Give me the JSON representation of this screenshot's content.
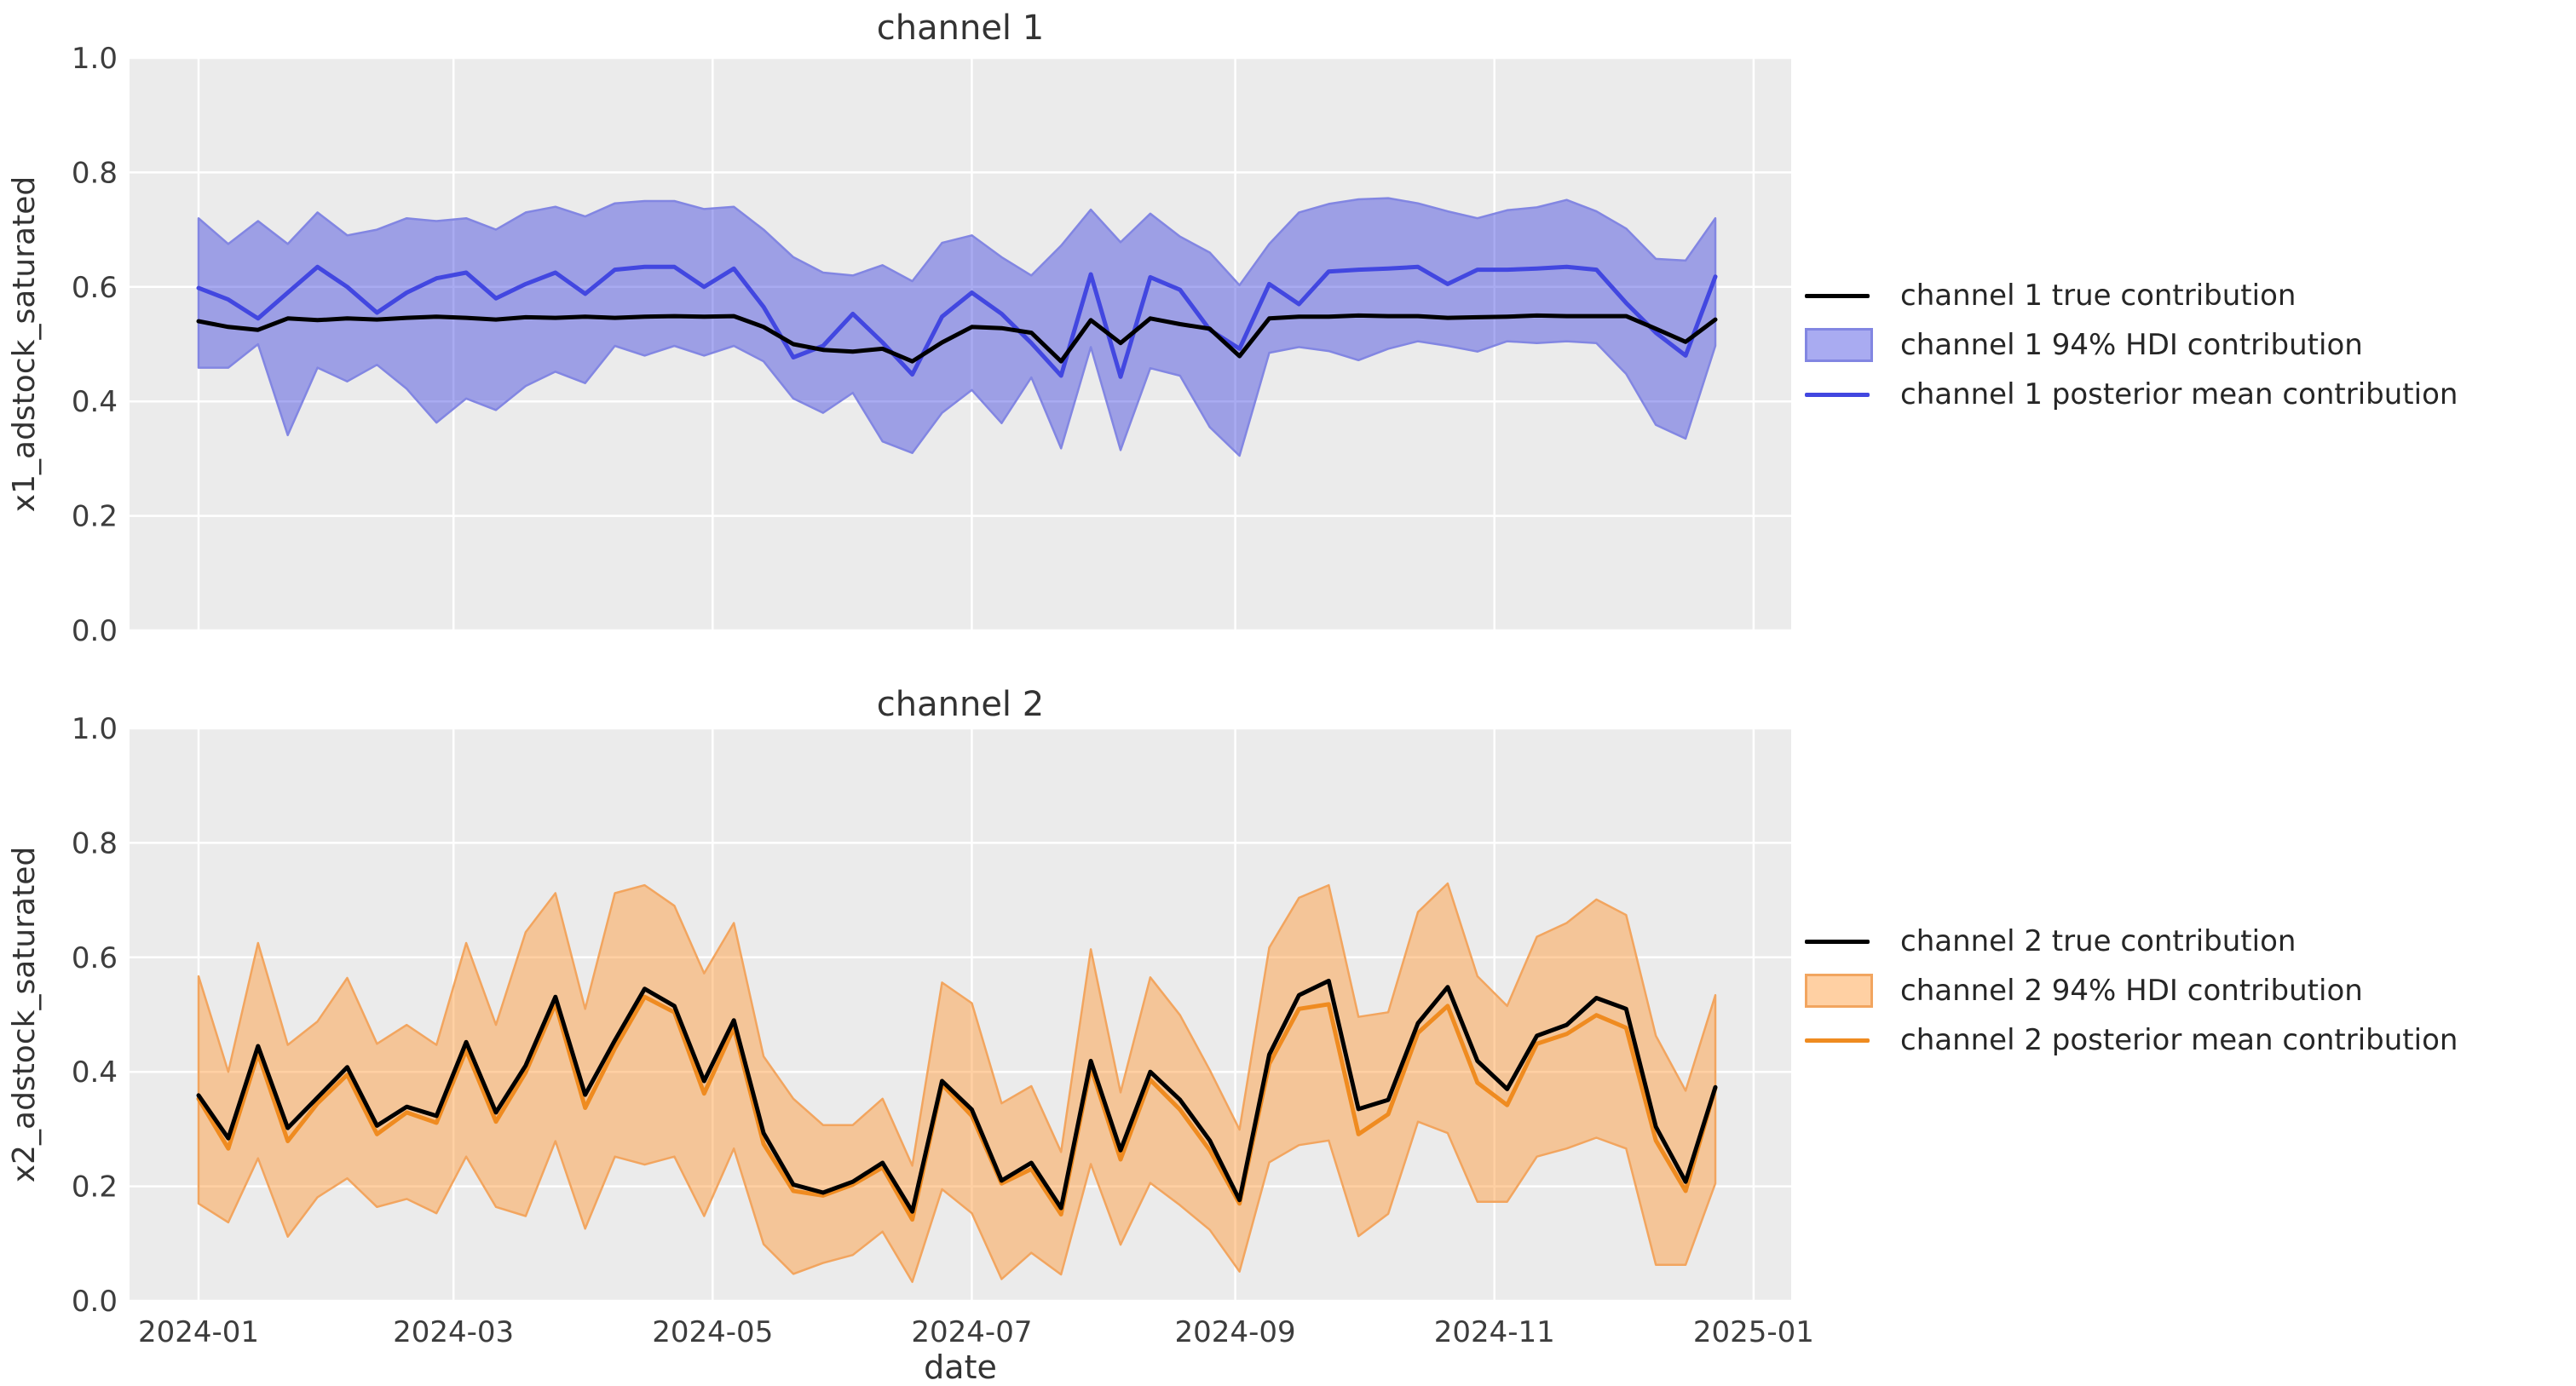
{
  "style": {
    "figure_bg": "#ffffff",
    "plot_bg": "#ebebeb",
    "grid_color": "#ffffff",
    "tick_color": "#3d3d3d",
    "text_color": "#333333"
  },
  "chart_data": [
    {
      "type": "line",
      "title": "channel 1",
      "xlabel": "",
      "ylabel": "x1_adstock_saturated",
      "ylim": [
        0.0,
        1.0
      ],
      "ytick_values": [
        0.0,
        0.2,
        0.4,
        0.6,
        0.8,
        1.0
      ],
      "ytick_labels": [
        "0.0",
        "0.2",
        "0.4",
        "0.6",
        "0.8",
        "1.0"
      ],
      "xtick_labels": [
        "2024-01",
        "2024-03",
        "2024-05",
        "2024-07",
        "2024-09",
        "2024-11",
        "2025-01"
      ],
      "xtick_days": [
        0,
        60,
        121,
        182,
        244,
        305,
        366
      ],
      "x_start": "2024-01-01",
      "x_step_days": 7,
      "n_points": 52,
      "grid": true,
      "legend_position": "right",
      "colors": {
        "true_line": "#000000",
        "posterior_mean_line": "#4247e0",
        "hdi_fill": "rgba(40,45,220,0.40)",
        "hdi_edge": "#8286e2"
      },
      "legend": [
        {
          "label": "channel 1 true contribution",
          "swatch": "line",
          "color_key": "true_line"
        },
        {
          "label": "channel 1 94% HDI contribution",
          "swatch": "band",
          "color_key": "hdi_fill"
        },
        {
          "label": "channel 1 posterior mean contribution",
          "swatch": "line",
          "color_key": "posterior_mean_line"
        }
      ],
      "series": [
        {
          "name": "channel 1 true contribution",
          "values": [
            0.54,
            0.53,
            0.525,
            0.545,
            0.542,
            0.545,
            0.543,
            0.546,
            0.548,
            0.546,
            0.543,
            0.547,
            0.546,
            0.548,
            0.546,
            0.548,
            0.549,
            0.548,
            0.549,
            0.53,
            0.5,
            0.49,
            0.487,
            0.492,
            0.47,
            0.503,
            0.53,
            0.528,
            0.52,
            0.47,
            0.542,
            0.502,
            0.545,
            0.535,
            0.527,
            0.479,
            0.545,
            0.548,
            0.548,
            0.55,
            0.549,
            0.549,
            0.546,
            0.547,
            0.548,
            0.55,
            0.549,
            0.549,
            0.549,
            0.527,
            0.504,
            0.543
          ]
        },
        {
          "name": "channel 1 posterior mean contribution",
          "values": [
            0.598,
            0.578,
            0.545,
            0.59,
            0.635,
            0.6,
            0.555,
            0.59,
            0.615,
            0.625,
            0.58,
            0.605,
            0.625,
            0.588,
            0.63,
            0.635,
            0.635,
            0.6,
            0.632,
            0.565,
            0.477,
            0.497,
            0.553,
            0.503,
            0.447,
            0.548,
            0.59,
            0.553,
            0.502,
            0.445,
            0.622,
            0.443,
            0.617,
            0.595,
            0.525,
            0.492,
            0.605,
            0.57,
            0.627,
            0.63,
            0.632,
            0.635,
            0.605,
            0.63,
            0.63,
            0.632,
            0.635,
            0.63,
            0.572,
            0.52,
            0.48,
            0.618
          ]
        },
        {
          "name": "channel 1 94% HDI upper",
          "values": [
            0.72,
            0.675,
            0.715,
            0.675,
            0.73,
            0.69,
            0.7,
            0.72,
            0.715,
            0.72,
            0.7,
            0.73,
            0.74,
            0.723,
            0.746,
            0.75,
            0.75,
            0.736,
            0.74,
            0.7,
            0.652,
            0.625,
            0.62,
            0.638,
            0.61,
            0.677,
            0.69,
            0.652,
            0.62,
            0.672,
            0.735,
            0.678,
            0.728,
            0.688,
            0.66,
            0.603,
            0.675,
            0.73,
            0.745,
            0.753,
            0.755,
            0.746,
            0.732,
            0.72,
            0.734,
            0.739,
            0.752,
            0.732,
            0.702,
            0.649,
            0.646,
            0.72
          ]
        },
        {
          "name": "channel 1 94% HDI lower",
          "values": [
            0.459,
            0.459,
            0.5,
            0.341,
            0.459,
            0.435,
            0.464,
            0.422,
            0.363,
            0.405,
            0.385,
            0.427,
            0.452,
            0.432,
            0.497,
            0.48,
            0.497,
            0.48,
            0.497,
            0.47,
            0.405,
            0.38,
            0.415,
            0.33,
            0.31,
            0.38,
            0.42,
            0.362,
            0.442,
            0.318,
            0.495,
            0.315,
            0.458,
            0.445,
            0.355,
            0.305,
            0.485,
            0.495,
            0.488,
            0.472,
            0.492,
            0.505,
            0.497,
            0.487,
            0.505,
            0.502,
            0.505,
            0.502,
            0.448,
            0.359,
            0.335,
            0.497
          ]
        }
      ]
    },
    {
      "type": "line",
      "title": "channel 2",
      "xlabel": "date",
      "ylabel": "x2_adstock_saturated",
      "ylim": [
        0.0,
        1.0
      ],
      "ytick_values": [
        0.0,
        0.2,
        0.4,
        0.6,
        0.8,
        1.0
      ],
      "ytick_labels": [
        "0.0",
        "0.2",
        "0.4",
        "0.6",
        "0.8",
        "1.0"
      ],
      "xtick_labels": [
        "2024-01",
        "2024-03",
        "2024-05",
        "2024-07",
        "2024-09",
        "2024-11",
        "2025-01"
      ],
      "xtick_days": [
        0,
        60,
        121,
        182,
        244,
        305,
        366
      ],
      "x_start": "2024-01-01",
      "x_step_days": 7,
      "n_points": 52,
      "grid": true,
      "legend_position": "right",
      "colors": {
        "true_line": "#000000",
        "posterior_mean_line": "#ef8b20",
        "hdi_fill": "rgba(255,150,50,0.45)",
        "hdi_edge": "#f2a55f"
      },
      "legend": [
        {
          "label": "channel 2 true contribution",
          "swatch": "line",
          "color_key": "true_line"
        },
        {
          "label": "channel 2 94% HDI contribution",
          "swatch": "band",
          "color_key": "hdi_fill"
        },
        {
          "label": "channel 2 posterior mean contribution",
          "swatch": "line",
          "color_key": "posterior_mean_line"
        }
      ],
      "series": [
        {
          "name": "channel 2 true contribution",
          "values": [
            0.359,
            0.284,
            0.445,
            0.302,
            0.355,
            0.408,
            0.306,
            0.339,
            0.323,
            0.452,
            0.329,
            0.411,
            0.531,
            0.36,
            0.455,
            0.545,
            0.515,
            0.384,
            0.49,
            0.293,
            0.203,
            0.189,
            0.208,
            0.241,
            0.156,
            0.384,
            0.334,
            0.21,
            0.241,
            0.162,
            0.419,
            0.263,
            0.4,
            0.351,
            0.28,
            0.176,
            0.43,
            0.534,
            0.559,
            0.335,
            0.351,
            0.485,
            0.548,
            0.419,
            0.37,
            0.463,
            0.482,
            0.529,
            0.51,
            0.304,
            0.208,
            0.373
          ]
        },
        {
          "name": "channel 2 posterior mean contribution",
          "values": [
            0.353,
            0.266,
            0.432,
            0.279,
            0.345,
            0.395,
            0.291,
            0.329,
            0.311,
            0.438,
            0.313,
            0.399,
            0.519,
            0.337,
            0.441,
            0.531,
            0.504,
            0.362,
            0.477,
            0.274,
            0.192,
            0.184,
            0.203,
            0.233,
            0.142,
            0.378,
            0.323,
            0.205,
            0.23,
            0.151,
            0.408,
            0.247,
            0.386,
            0.334,
            0.263,
            0.17,
            0.414,
            0.51,
            0.518,
            0.291,
            0.326,
            0.468,
            0.515,
            0.381,
            0.342,
            0.449,
            0.466,
            0.499,
            0.477,
            0.28,
            0.192,
            0.372
          ]
        },
        {
          "name": "channel 2 94% HDI upper",
          "values": [
            0.567,
            0.4,
            0.625,
            0.447,
            0.488,
            0.564,
            0.449,
            0.482,
            0.447,
            0.625,
            0.482,
            0.644,
            0.712,
            0.51,
            0.712,
            0.726,
            0.69,
            0.572,
            0.66,
            0.427,
            0.353,
            0.307,
            0.307,
            0.353,
            0.236,
            0.556,
            0.52,
            0.345,
            0.375,
            0.26,
            0.614,
            0.364,
            0.565,
            0.499,
            0.403,
            0.299,
            0.617,
            0.704,
            0.726,
            0.496,
            0.504,
            0.679,
            0.729,
            0.567,
            0.515,
            0.636,
            0.66,
            0.701,
            0.674,
            0.463,
            0.367,
            0.534
          ]
        },
        {
          "name": "channel 2 94% HDI lower",
          "values": [
            0.17,
            0.137,
            0.249,
            0.112,
            0.181,
            0.214,
            0.164,
            0.178,
            0.153,
            0.252,
            0.164,
            0.148,
            0.279,
            0.126,
            0.252,
            0.238,
            0.252,
            0.148,
            0.266,
            0.099,
            0.047,
            0.066,
            0.08,
            0.121,
            0.033,
            0.195,
            0.153,
            0.038,
            0.084,
            0.046,
            0.239,
            0.098,
            0.206,
            0.167,
            0.124,
            0.051,
            0.242,
            0.272,
            0.28,
            0.113,
            0.152,
            0.313,
            0.293,
            0.173,
            0.173,
            0.252,
            0.266,
            0.285,
            0.266,
            0.063,
            0.063,
            0.205
          ]
        }
      ]
    }
  ]
}
